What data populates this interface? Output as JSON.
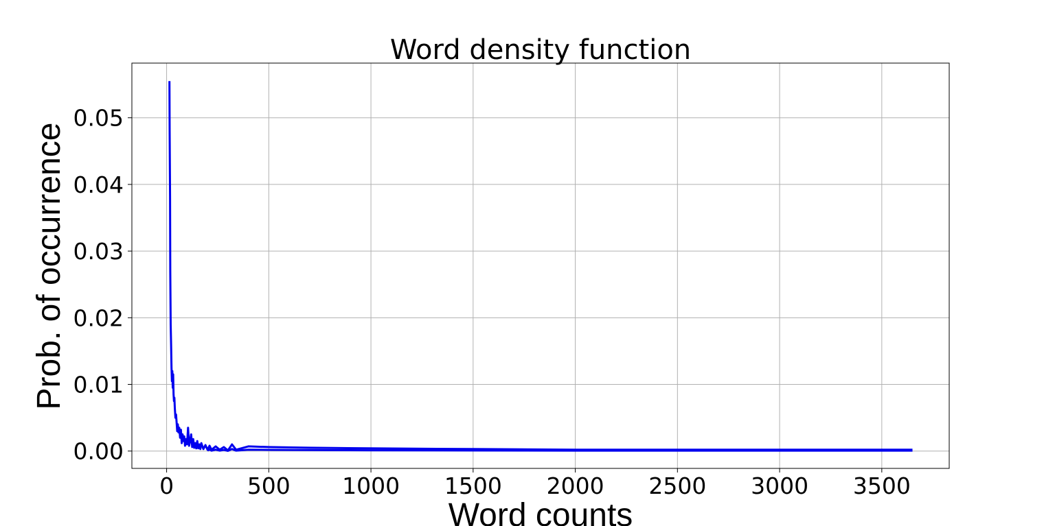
{
  "chart_data": {
    "type": "line",
    "title": "Word density function",
    "xlabel": "Word counts",
    "ylabel": "Prob. of occurrence",
    "xlim": [
      -170,
      3830
    ],
    "ylim": [
      -0.0026,
      0.0582
    ],
    "x_ticks": [
      "0",
      "500",
      "1000",
      "1500",
      "2000",
      "2500",
      "3000",
      "3500"
    ],
    "x_tick_values": [
      0,
      500,
      1000,
      1500,
      2000,
      2500,
      3000,
      3500
    ],
    "y_ticks": [
      "0.00",
      "0.01",
      "0.02",
      "0.03",
      "0.04",
      "0.05"
    ],
    "y_tick_values": [
      0,
      0.01,
      0.02,
      0.03,
      0.04,
      0.05
    ],
    "grid": true,
    "line_color": "#0000ee",
    "series": [
      {
        "x": [
          14,
          15,
          17,
          18,
          19,
          20,
          22,
          24,
          26,
          28,
          30,
          32,
          34,
          36,
          38,
          40,
          43,
          46,
          49,
          52,
          55,
          58,
          62,
          66,
          70,
          74,
          78,
          82,
          86,
          90,
          95,
          100,
          105,
          110,
          115,
          120,
          125,
          130,
          135,
          140,
          145,
          150,
          155,
          160,
          165,
          170,
          180,
          190,
          200,
          210,
          220,
          240,
          260,
          280,
          300,
          320,
          340,
          400,
          500,
          700,
          1000,
          1500,
          2000,
          2500,
          3000,
          3650
        ],
        "y": [
          0.0555,
          0.048,
          0.038,
          0.027,
          0.023,
          0.019,
          0.016,
          0.0125,
          0.0105,
          0.012,
          0.0095,
          0.0115,
          0.0085,
          0.0075,
          0.008,
          0.0065,
          0.005,
          0.0055,
          0.0042,
          0.003,
          0.004,
          0.0028,
          0.0035,
          0.002,
          0.0032,
          0.0012,
          0.0025,
          0.0015,
          0.0022,
          0.0008,
          0.0018,
          0.001,
          0.0035,
          0.0008,
          0.0015,
          0.0025,
          0.0006,
          0.0018,
          0.0005,
          0.0012,
          0.0004,
          0.0015,
          0.0004,
          0.001,
          0.0003,
          0.0012,
          0.0003,
          0.0009,
          0.0002,
          0.0008,
          0.0002,
          0.0007,
          0.0002,
          0.0006,
          0.0001,
          0.001,
          0.0002,
          0.0007,
          0.0006,
          0.0005,
          0.0004,
          0.0003,
          0.0002,
          0.0002,
          0.0002,
          0.0002
        ]
      }
    ]
  }
}
